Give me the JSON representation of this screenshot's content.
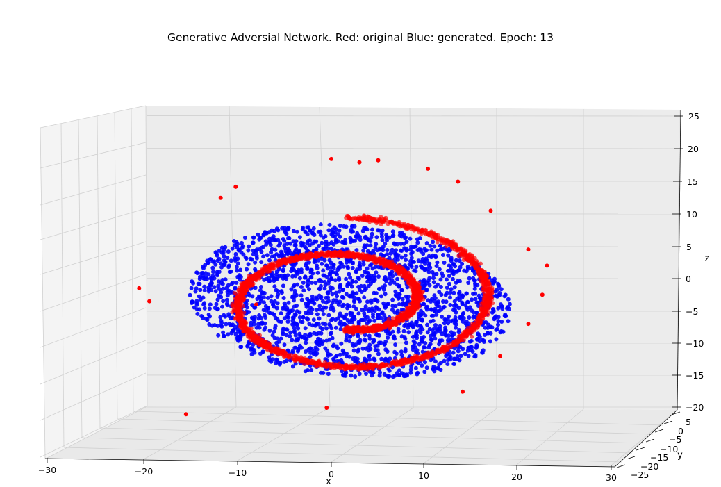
{
  "chart_data": {
    "type": "scatter",
    "projection": "3d",
    "title": "Generative Adversial Network. Red: original Blue: generated. Epoch: 13",
    "xlabel": "x",
    "ylabel": "y",
    "zlabel": "z",
    "xlim": [
      -32,
      31
    ],
    "ylim": [
      -27,
      7
    ],
    "zlim": [
      -20,
      25
    ],
    "x_ticks": [
      "−30",
      "−20",
      "−10",
      "0",
      "10",
      "20",
      "30"
    ],
    "y_ticks": [
      "−25",
      "−20",
      "−15",
      "−10",
      "−5",
      "0",
      "5"
    ],
    "z_ticks": [
      "−20",
      "−15",
      "−10",
      "−5",
      "0",
      "5",
      "10",
      "15",
      "20",
      "25"
    ],
    "grid": true,
    "series": [
      {
        "name": "original",
        "color": "#ff0000",
        "shape": "spiral (swiss roll)",
        "points": [
          [
            -20.5,
            -7,
            -1.5
          ],
          [
            -19.4,
            -7,
            -3.5
          ],
          [
            -15.5,
            -7,
            -21
          ],
          [
            -10.2,
            -7,
            14.2
          ],
          [
            -11.8,
            -7,
            12.5
          ],
          [
            0,
            -7,
            18.5
          ],
          [
            3,
            -7,
            18
          ],
          [
            5,
            -7,
            18.3
          ],
          [
            10.3,
            -7,
            17
          ],
          [
            13.5,
            -7,
            15
          ],
          [
            17,
            -7,
            10.5
          ],
          [
            21,
            -7,
            4.5
          ],
          [
            23,
            -7,
            2
          ],
          [
            22.5,
            -7,
            -2.5
          ],
          [
            -0.5,
            -7,
            -20
          ],
          [
            -8,
            -7,
            -4
          ],
          [
            -9,
            -7,
            -8
          ],
          [
            14,
            -7,
            -17.5
          ],
          [
            18,
            -7,
            -12
          ],
          [
            21,
            -7,
            -7
          ]
        ]
      },
      {
        "name": "generated",
        "color": "#0000ff",
        "shape": "filled disk",
        "points": [
          [
            0,
            -7,
            0
          ],
          [
            3,
            -7,
            2
          ],
          [
            -5,
            -7,
            3
          ],
          [
            6,
            -7,
            -4
          ],
          [
            -3,
            -7,
            -6
          ],
          [
            9,
            -7,
            5
          ],
          [
            -9,
            -7,
            -2
          ],
          [
            2,
            -7,
            -9
          ],
          [
            11,
            -7,
            -5
          ],
          [
            -6,
            -7,
            6
          ]
        ]
      }
    ]
  }
}
